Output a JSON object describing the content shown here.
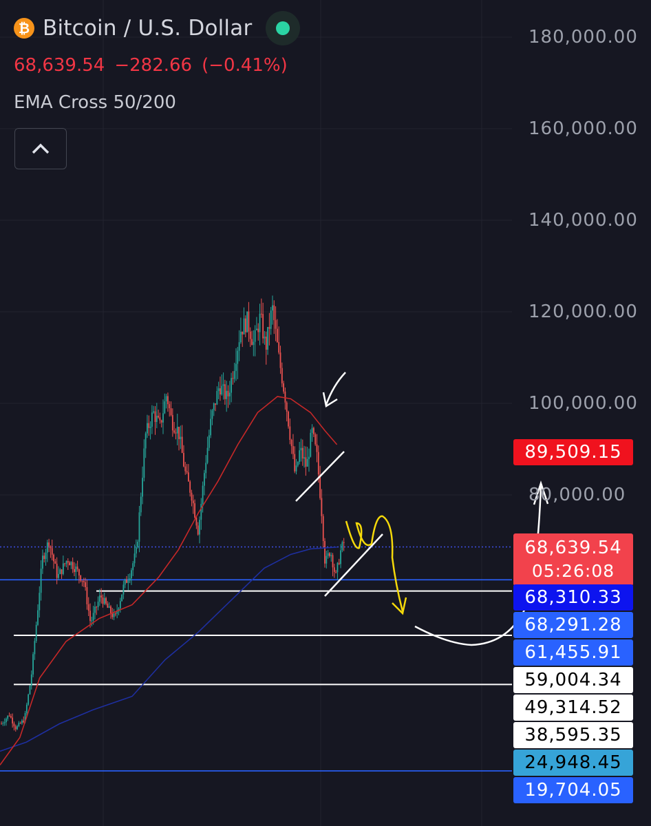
{
  "header": {
    "icon": "bitcoin-icon",
    "title": "Bitcoin / U.S. Dollar",
    "status_color": "#2bd4a4",
    "price": "68,639.54",
    "change": "−282.66",
    "change_pct": "(−0.41%)",
    "indicator": "EMA Cross 50/200",
    "collapse_icon": "chevron-up-icon"
  },
  "colors": {
    "background": "#161722",
    "up": "#26a69a",
    "down": "#ef5350",
    "ema50": "#c62828",
    "ema200": "#1e2fa0"
  },
  "chart_data": {
    "type": "candlestick",
    "y_axis_ticks": [
      "180,000.00",
      "160,000.00",
      "140,000.00",
      "120,000.00",
      "100,000.00",
      "80,000.00"
    ],
    "ylim": [
      19000,
      186000
    ],
    "price_tags": [
      {
        "value": 89509.15,
        "label": "89,509.15",
        "bg": "#f0121e",
        "fg": "#ffffff"
      },
      {
        "value": 68639.54,
        "label": "68,639.54",
        "sub": "05:26:08",
        "bg": "#f2424c",
        "fg": "#ffffff"
      },
      {
        "value": 68310.33,
        "label": "68,310.33",
        "bg": "#0d14ef",
        "fg": "#ffffff"
      },
      {
        "value": 68291.28,
        "label": "68,291.28",
        "bg": "#2962ff",
        "fg": "#ffffff"
      },
      {
        "value": 61455.91,
        "label": "61,455.91",
        "bg": "#2962ff",
        "fg": "#ffffff"
      },
      {
        "value": 59004.34,
        "label": "59,004.34",
        "bg": "#ffffff",
        "fg": "#000000"
      },
      {
        "value": 49314.52,
        "label": "49,314.52",
        "bg": "#ffffff",
        "fg": "#000000"
      },
      {
        "value": 38595.35,
        "label": "38,595.35",
        "bg": "#ffffff",
        "fg": "#000000"
      },
      {
        "value": 24948.45,
        "label": "24,948.45",
        "bg": "#36a4d8",
        "fg": "#000000"
      },
      {
        "value": 19704.05,
        "label": "19,704.05",
        "bg": "#2962ff",
        "fg": "#ffffff"
      }
    ],
    "horizontal_levels": [
      {
        "value": 68639.54,
        "color": "#3b4bd8",
        "style": "dotted"
      },
      {
        "value": 61455.91,
        "color": "#2962ff",
        "style": "solid"
      },
      {
        "value": 59004.34,
        "color": "#ffffff",
        "style": "solid"
      },
      {
        "value": 49314.52,
        "color": "#ffffff",
        "style": "solid"
      },
      {
        "value": 38595.35,
        "color": "#ffffff",
        "style": "solid"
      },
      {
        "value": 19704.05,
        "color": "#2962ff",
        "style": "solid"
      }
    ],
    "price_path": [
      [
        0,
        30000
      ],
      [
        12,
        32000
      ],
      [
        22,
        29000
      ],
      [
        35,
        31000
      ],
      [
        45,
        40000
      ],
      [
        55,
        55000
      ],
      [
        62,
        66000
      ],
      [
        72,
        70000
      ],
      [
        85,
        62000
      ],
      [
        100,
        66000
      ],
      [
        112,
        64000
      ],
      [
        125,
        61000
      ],
      [
        135,
        52000
      ],
      [
        150,
        58000
      ],
      [
        162,
        55000
      ],
      [
        172,
        53000
      ],
      [
        185,
        60000
      ],
      [
        195,
        63000
      ],
      [
        205,
        68000
      ],
      [
        210,
        78000
      ],
      [
        218,
        93000
      ],
      [
        230,
        98000
      ],
      [
        240,
        95000
      ],
      [
        250,
        102000
      ],
      [
        258,
        96000
      ],
      [
        268,
        94000
      ],
      [
        278,
        85000
      ],
      [
        288,
        80000
      ],
      [
        298,
        72000
      ],
      [
        308,
        86000
      ],
      [
        318,
        97000
      ],
      [
        330,
        104000
      ],
      [
        342,
        101000
      ],
      [
        352,
        108000
      ],
      [
        362,
        116000
      ],
      [
        372,
        118000
      ],
      [
        382,
        113000
      ],
      [
        392,
        119000
      ],
      [
        400,
        112000
      ],
      [
        410,
        121000
      ],
      [
        420,
        110000
      ],
      [
        430,
        101000
      ],
      [
        438,
        92000
      ],
      [
        445,
        84000
      ],
      [
        452,
        90000
      ],
      [
        462,
        86000
      ],
      [
        470,
        94000
      ],
      [
        478,
        88000
      ],
      [
        485,
        76000
      ],
      [
        490,
        65000
      ],
      [
        498,
        68000
      ],
      [
        506,
        62000
      ],
      [
        514,
        68000
      ],
      [
        520,
        70000
      ]
    ],
    "ema50": [
      [
        0,
        21000
      ],
      [
        30,
        27000
      ],
      [
        60,
        40000
      ],
      [
        100,
        48000
      ],
      [
        150,
        53000
      ],
      [
        200,
        56000
      ],
      [
        240,
        62000
      ],
      [
        270,
        68000
      ],
      [
        300,
        76000
      ],
      [
        330,
        83000
      ],
      [
        360,
        91000
      ],
      [
        390,
        98000
      ],
      [
        420,
        101500
      ],
      [
        440,
        101000
      ],
      [
        470,
        98000
      ],
      [
        492,
        94000
      ],
      [
        510,
        91000
      ]
    ],
    "ema200": [
      [
        0,
        24000
      ],
      [
        40,
        26000
      ],
      [
        90,
        30000
      ],
      [
        140,
        33000
      ],
      [
        200,
        36000
      ],
      [
        250,
        44000
      ],
      [
        300,
        50000
      ],
      [
        350,
        57000
      ],
      [
        400,
        64000
      ],
      [
        440,
        67000
      ],
      [
        470,
        68200
      ],
      [
        510,
        68600
      ]
    ],
    "annotations": [
      {
        "type": "arrow",
        "color": "#ffffff",
        "description": "down arrow to local top"
      },
      {
        "type": "trendline",
        "color": "#ffffff"
      },
      {
        "type": "trendline",
        "color": "#ffffff"
      },
      {
        "type": "scribble-arrow",
        "color": "#f5d90a"
      },
      {
        "type": "curve-arrow",
        "color": "#ffffff"
      }
    ]
  }
}
